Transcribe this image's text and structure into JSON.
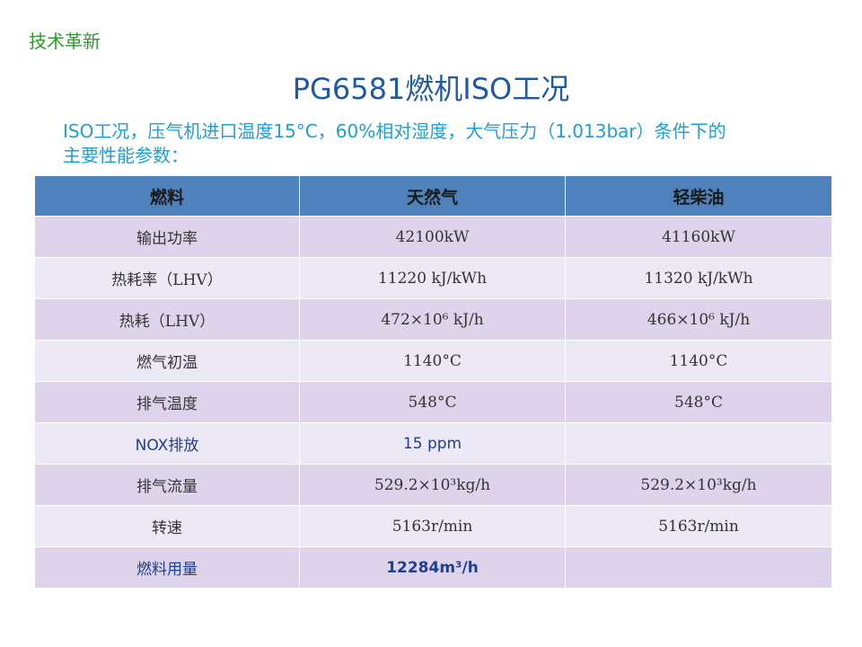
{
  "corner_label": "技术革新",
  "title": "PG6581燃机ISO工况",
  "intro_line1": "ISO工况，压气机进口温度15°C，60%相对湿度，大气压力（1.013bar）条件下的",
  "intro_line2": "主要性能参数：",
  "table": {
    "headers": [
      "燃料",
      "天然气",
      "轻柴油"
    ],
    "rows": [
      {
        "label": "输出功率",
        "gas": "42100kW",
        "oil": "41160kW"
      },
      {
        "label": "热耗率（LHV）",
        "gas": "11220 kJ/kWh",
        "oil": "11320 kJ/kWh"
      },
      {
        "label": "热耗（LHV）",
        "gas": "472×10⁶ kJ/h",
        "oil": "466×10⁶ kJ/h"
      },
      {
        "label": "燃气初温",
        "gas": "1140°C",
        "oil": "1140°C"
      },
      {
        "label": "排气温度",
        "gas": "548°C",
        "oil": "548°C"
      },
      {
        "label": "NOX排放",
        "gas": "15 ppm",
        "oil": ""
      },
      {
        "label": "排气流量",
        "gas": "529.2×10³kg/h",
        "oil": "529.2×10³kg/h"
      },
      {
        "label": "转速",
        "gas": "5163r/min",
        "oil": "5163r/min"
      },
      {
        "label": "燃料用量",
        "gas": "12284m³/h",
        "oil": ""
      }
    ]
  },
  "colors": {
    "header_bg": "#4f81bd",
    "row_odd_bg": "#ddd4ec",
    "row_even_bg": "#ede8f5",
    "title": "#1f5aa6",
    "intro": "#1e9fd6",
    "corner_label": "#2c9a2c"
  }
}
